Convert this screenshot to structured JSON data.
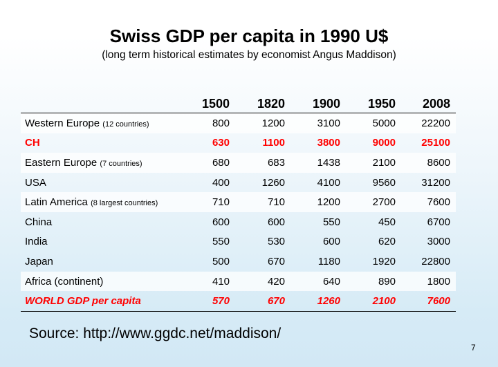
{
  "slide": {
    "title": "Swiss GDP per capita in 1990 U$",
    "subtitle": "(long term historical estimates by economist Angus Maddison)",
    "source": "Source: http://www.ggdc.net/maddison/",
    "page_number": "7"
  },
  "table": {
    "header": [
      "",
      "1500",
      "1820",
      "1900",
      "1950",
      "2008"
    ],
    "rows": [
      {
        "label": "Western Europe",
        "note": "(12 countries)",
        "values": [
          "800",
          "1200",
          "3100",
          "5000",
          "22200"
        ]
      },
      {
        "label": "CH",
        "note": "",
        "values": [
          "630",
          "1100",
          "3800",
          "9000",
          "25100"
        ]
      },
      {
        "label": "Eastern Europe",
        "note": "(7 countries)",
        "values": [
          "680",
          "683",
          "1438",
          "2100",
          "8600"
        ]
      },
      {
        "label": "USA",
        "note": "",
        "values": [
          "400",
          "1260",
          "4100",
          "9560",
          "31200"
        ]
      },
      {
        "label": "Latin America",
        "note": "(8 largest countries)",
        "values": [
          "710",
          "710",
          "1200",
          "2700",
          "7600"
        ]
      },
      {
        "label": "China",
        "note": "",
        "values": [
          "600",
          "600",
          "550",
          "450",
          "6700"
        ]
      },
      {
        "label": "India",
        "note": "",
        "values": [
          "550",
          "530",
          "600",
          "620",
          "3000"
        ]
      },
      {
        "label": "Japan",
        "note": "",
        "values": [
          "500",
          "670",
          "1180",
          "1920",
          "22800"
        ]
      },
      {
        "label": "Africa (continent)",
        "note": "",
        "values": [
          "410",
          "420",
          "640",
          "890",
          "1800"
        ]
      },
      {
        "label": "WORLD GDP per capita",
        "note": "",
        "values": [
          "570",
          "670",
          "1260",
          "2100",
          "7600"
        ]
      }
    ]
  },
  "colors": {
    "highlight": "#ff0000",
    "text": "#000000"
  }
}
